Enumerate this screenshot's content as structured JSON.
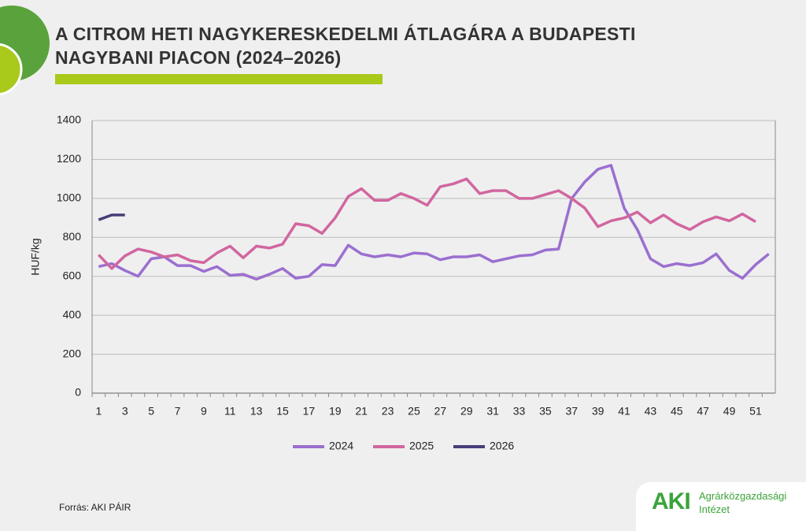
{
  "chart_data": {
    "type": "line",
    "title": "A CITROM HETI NAGYKERESKEDELMI ÁTLAGÁRA A BUDAPESTI\nNAGYBANI PIACON (2024–2026)",
    "y_label": "HUF/kg",
    "source": "Forrás: AKI PÁIR",
    "logo": {
      "mark": "AKI",
      "line1": "Agrárközgazdasági",
      "line2": "Intézet"
    },
    "categories": [
      "1",
      null,
      "3",
      null,
      "5",
      null,
      "7",
      null,
      "9",
      null,
      "11",
      null,
      "13",
      null,
      "15",
      null,
      "17",
      null,
      "19",
      null,
      "21",
      null,
      "23",
      null,
      "25",
      null,
      "27",
      null,
      "29",
      null,
      "31",
      null,
      "33",
      null,
      "35",
      null,
      "37",
      null,
      "39",
      null,
      "41",
      null,
      "43",
      null,
      "45",
      null,
      "47",
      null,
      "49",
      null,
      "51",
      null
    ],
    "ylim": [
      0,
      1400
    ],
    "yticks": [
      0,
      200,
      400,
      600,
      800,
      1000,
      1200,
      1400
    ],
    "grid": true,
    "legend": "bottom",
    "series": [
      {
        "name": "2024",
        "color": "#9b6fd0",
        "values": [
          650,
          665,
          630,
          600,
          690,
          700,
          655,
          655,
          625,
          650,
          605,
          610,
          585,
          610,
          640,
          590,
          600,
          660,
          655,
          760,
          715,
          700,
          710,
          700,
          720,
          715,
          685,
          700,
          700,
          710,
          675,
          690,
          705,
          710,
          735,
          740,
          1000,
          1085,
          1150,
          1170,
          950,
          840,
          690,
          650,
          665,
          655,
          670,
          715,
          630,
          590,
          660,
          715
        ]
      },
      {
        "name": "2025",
        "color": "#d1669f",
        "values": [
          710,
          640,
          705,
          740,
          725,
          700,
          710,
          680,
          670,
          720,
          755,
          695,
          755,
          745,
          765,
          870,
          860,
          820,
          900,
          1010,
          1050,
          990,
          990,
          1025,
          1000,
          965,
          1060,
          1075,
          1100,
          1025,
          1040,
          1040,
          1000,
          1000,
          1020,
          1040,
          1000,
          950,
          855,
          885,
          900,
          930,
          875,
          915,
          870,
          840,
          880,
          905,
          885,
          920,
          880,
          null
        ]
      },
      {
        "name": "2026",
        "color": "#4a3d7a",
        "values": [
          890,
          915,
          915,
          null,
          null,
          null,
          null,
          null,
          null,
          null,
          null,
          null,
          null,
          null,
          null,
          null,
          null,
          null,
          null,
          null,
          null,
          null,
          null,
          null,
          null,
          null,
          null,
          null,
          null,
          null,
          null,
          null,
          null,
          null,
          null,
          null,
          null,
          null,
          null,
          null,
          null,
          null,
          null,
          null,
          null,
          null,
          null,
          null,
          null,
          null,
          null,
          null
        ]
      }
    ]
  }
}
